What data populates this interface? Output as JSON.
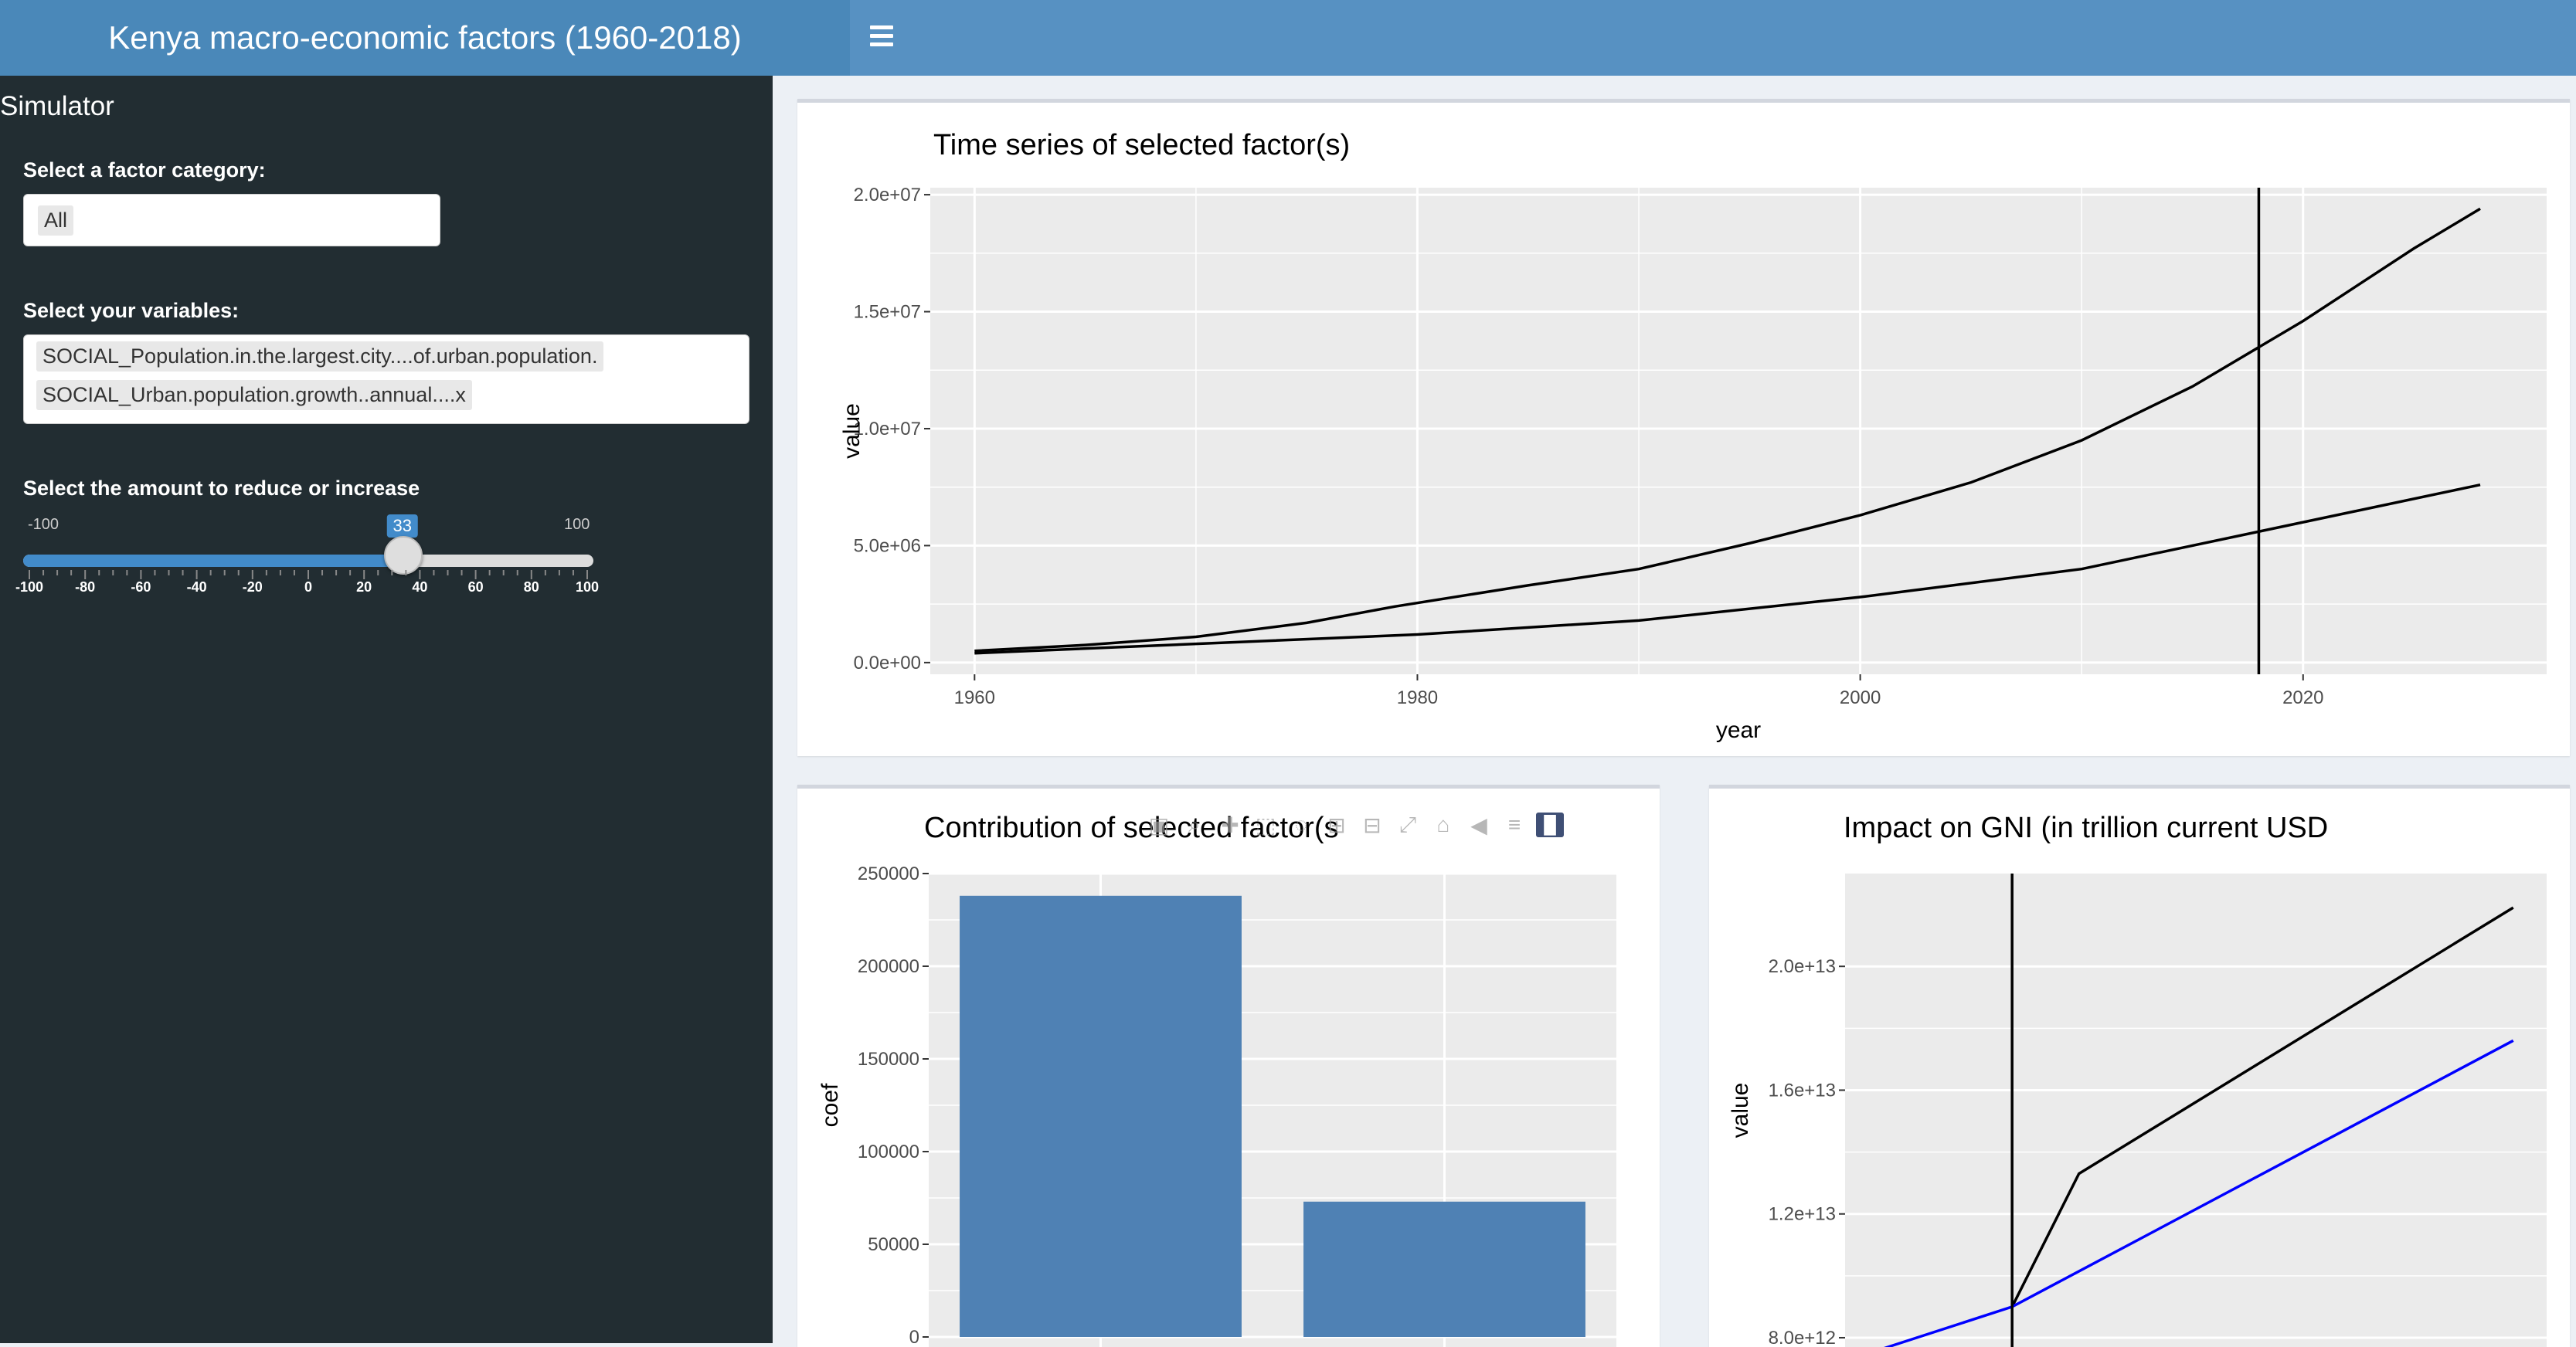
{
  "header": {
    "title": "Kenya macro-economic factors (1960-2018)"
  },
  "sidebar": {
    "title": "Simulator",
    "category_label": "Select a factor category:",
    "category_value": "All",
    "variables_label": "Select your variables:",
    "variables": [
      "SOCIAL_Population.in.the.largest.city....of.urban.population.",
      "SOCIAL_Urban.population.growth..annual....x"
    ],
    "slider_label": "Select the amount to reduce or increase",
    "slider": {
      "min": -100,
      "max": 100,
      "value": 33,
      "min_label": "-100",
      "max_label": "100",
      "value_label": "33",
      "tick_labels": [
        "-100",
        "-80",
        "-60",
        "-40",
        "-20",
        "0",
        "20",
        "40",
        "60",
        "80",
        "100"
      ]
    }
  },
  "charts": {
    "timeseries": {
      "title": "Time series of selected factor(s)"
    },
    "contribution": {
      "title": "Contribution of selected factor(s"
    },
    "gni": {
      "title": "Impact on GNI (in trillion current USD"
    }
  },
  "modebar": {
    "icons": [
      "camera-icon",
      "zoom-icon",
      "pan-icon",
      "box-select-icon",
      "lasso-icon",
      "zoom-in-icon",
      "zoom-out-icon",
      "autoscale-icon",
      "reset-axes-icon",
      "hover-closest-icon",
      "hover-compare-icon",
      "plotly-logo-icon"
    ]
  },
  "chart_data": [
    {
      "type": "line",
      "title": "Time series of selected factor(s)",
      "xlabel": "year",
      "ylabel": "value",
      "xlim": [
        1958,
        2031
      ],
      "ylim": [
        -500000,
        20300000
      ],
      "xticks": [
        1960,
        1980,
        2000,
        2020
      ],
      "xtick_labels": [
        "1960",
        "1980",
        "2000",
        "2020"
      ],
      "yticks": [
        0,
        5000000,
        10000000,
        15000000,
        20000000
      ],
      "ytick_labels": [
        "0.0e+00",
        "5.0e+06",
        "1.0e+07",
        "1.5e+07",
        "2.0e+07"
      ],
      "vline": 2018,
      "series": [
        {
          "color": "#000000",
          "x": [
            1960,
            1965,
            1970,
            1975,
            1979,
            1985,
            1990,
            1995,
            2000,
            2005,
            2010,
            2015,
            2020,
            2025,
            2028
          ],
          "y": [
            500000,
            750000,
            1100000,
            1700000,
            2400000,
            3300000,
            4000000,
            5100000,
            6300000,
            7700000,
            9500000,
            11800000,
            14600000,
            17700000,
            19400000
          ]
        },
        {
          "color": "#000000",
          "x": [
            1960,
            1970,
            1980,
            1990,
            2000,
            2010,
            2018,
            2028
          ],
          "y": [
            400000,
            800000,
            1200000,
            1800000,
            2800000,
            4000000,
            5600000,
            7600000
          ]
        }
      ]
    },
    {
      "type": "bar",
      "title": "Contribution of selected factor(s",
      "ylabel": "coef",
      "ylim": [
        0,
        250000
      ],
      "yticks": [
        0,
        50000,
        100000,
        150000,
        200000,
        250000
      ],
      "ytick_labels": [
        "0",
        "50000",
        "100000",
        "150000",
        "200000",
        "250000"
      ],
      "values": [
        238000,
        73000
      ],
      "color": "#4f81b4"
    },
    {
      "type": "line",
      "title": "Impact on GNI (in trillion current USD",
      "ylabel": "value",
      "xlim": [
        2013,
        2034
      ],
      "ylim": [
        7700000000000,
        23000000000000
      ],
      "yticks": [
        8000000000000,
        12000000000000,
        16000000000000,
        20000000000000
      ],
      "ytick_labels": [
        "8.0e+12",
        "1.2e+13",
        "1.6e+13",
        "2.0e+13"
      ],
      "vline": 2018,
      "series": [
        {
          "color": "#000000",
          "x": [
            2018,
            2020,
            2033
          ],
          "y": [
            9000000000000,
            13300000000000,
            21900000000000
          ]
        },
        {
          "color": "#0000ff",
          "x": [
            2014,
            2018,
            2033
          ],
          "y": [
            7600000000000,
            9000000000000,
            17600000000000
          ]
        }
      ]
    }
  ]
}
